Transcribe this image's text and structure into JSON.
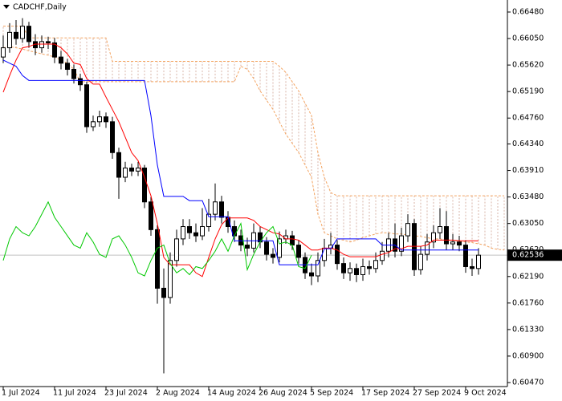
{
  "chart_data": {
    "type": "candlestick",
    "title": "CADCHF,Daily",
    "categories": [
      "1 Jul 2024",
      null,
      null,
      null,
      null,
      null,
      null,
      null,
      "11 Jul 2024",
      null,
      null,
      null,
      null,
      null,
      null,
      null,
      "23 Jul 2024",
      null,
      null,
      null,
      null,
      null,
      null,
      null,
      "2 Aug 2024",
      null,
      null,
      null,
      null,
      null,
      null,
      null,
      "14 Aug 2024",
      null,
      null,
      null,
      null,
      null,
      null,
      null,
      "26 Aug 2024",
      null,
      null,
      null,
      null,
      null,
      null,
      null,
      "5 Sep 2024",
      null,
      null,
      null,
      null,
      null,
      null,
      null,
      "17 Sep 2024",
      null,
      null,
      null,
      null,
      null,
      null,
      null,
      "27 Sep 2024",
      null,
      null,
      null,
      null,
      null,
      null,
      null,
      "9 Oct 2024",
      null,
      null,
      null,
      null,
      null,
      null
    ],
    "open": [
      0.6575,
      0.659,
      0.6615,
      0.6605,
      0.6625,
      0.66,
      0.659,
      0.66,
      0.6598,
      0.6575,
      0.6565,
      0.6555,
      0.654,
      0.653,
      0.6462,
      0.647,
      0.6478,
      0.647,
      0.642,
      0.638,
      0.6395,
      0.639,
      0.6395,
      0.634,
      0.6295,
      0.62,
      0.6185,
      0.6245,
      0.628,
      0.63,
      0.629,
      0.6285,
      0.63,
      0.632,
      0.634,
      0.6315,
      0.63,
      0.6285,
      0.627,
      0.6265,
      0.629,
      0.6275,
      0.6255,
      0.625,
      0.628,
      0.6285,
      0.627,
      0.625,
      0.6225,
      0.622,
      0.6245,
      0.6265,
      0.627,
      0.624,
      0.6225,
      0.6232,
      0.6222,
      0.6235,
      0.6232,
      0.6245,
      0.626,
      0.628,
      0.626,
      0.6285,
      0.6305,
      0.623,
      0.6255,
      0.6275,
      0.629,
      0.63,
      0.6272,
      0.6275,
      0.627,
      0.6235,
      0.6232,
      null,
      null,
      null,
      null
    ],
    "high": [
      0.661,
      0.663,
      0.6635,
      0.6638,
      0.6632,
      0.6612,
      0.661,
      0.6608,
      0.6606,
      0.6585,
      0.6572,
      0.6563,
      0.6548,
      0.6535,
      0.648,
      0.6488,
      0.6485,
      0.6478,
      0.6428,
      0.6405,
      0.6402,
      0.6405,
      0.64,
      0.6348,
      0.6302,
      0.6232,
      0.6258,
      0.6295,
      0.6312,
      0.6312,
      0.6305,
      0.633,
      0.6345,
      0.637,
      0.635,
      0.6325,
      0.631,
      0.6295,
      0.6282,
      0.6305,
      0.63,
      0.6283,
      0.6265,
      0.6292,
      0.6295,
      0.6293,
      0.6278,
      0.6258,
      0.624,
      0.6258,
      0.628,
      0.629,
      0.6278,
      0.625,
      0.6242,
      0.624,
      0.6248,
      0.6245,
      0.6258,
      0.6275,
      0.629,
      0.6305,
      0.6298,
      0.632,
      0.6312,
      0.6268,
      0.6288,
      0.6302,
      0.633,
      0.6325,
      0.6288,
      0.6285,
      0.6278,
      0.6248,
      0.6265,
      null,
      null,
      null,
      null
    ],
    "low": [
      0.6565,
      0.6582,
      0.6595,
      0.6598,
      0.659,
      0.6578,
      0.6582,
      0.6588,
      0.6565,
      0.6555,
      0.6545,
      0.6532,
      0.652,
      0.6452,
      0.6455,
      0.6462,
      0.646,
      0.641,
      0.6345,
      0.6372,
      0.6382,
      0.6382,
      0.633,
      0.6285,
      0.6175,
      0.6062,
      0.6175,
      0.6235,
      0.627,
      0.628,
      0.6275,
      0.6278,
      0.6292,
      0.631,
      0.6305,
      0.629,
      0.6275,
      0.626,
      0.6252,
      0.6258,
      0.6265,
      0.6245,
      0.624,
      0.6242,
      0.6272,
      0.6262,
      0.624,
      0.6215,
      0.6205,
      0.621,
      0.6235,
      0.6255,
      0.623,
      0.6215,
      0.6212,
      0.621,
      0.6212,
      0.6222,
      0.6225,
      0.6238,
      0.625,
      0.625,
      0.6252,
      0.6275,
      0.622,
      0.6222,
      0.6245,
      0.6265,
      0.628,
      0.6262,
      0.6262,
      0.626,
      0.6225,
      0.622,
      0.6222,
      null,
      null,
      null,
      null
    ],
    "close": [
      0.659,
      0.6615,
      0.6605,
      0.6625,
      0.66,
      0.659,
      0.66,
      0.6598,
      0.6575,
      0.6565,
      0.6555,
      0.654,
      0.653,
      0.6462,
      0.647,
      0.6478,
      0.647,
      0.642,
      0.638,
      0.6395,
      0.639,
      0.6395,
      0.634,
      0.6295,
      0.62,
      0.6185,
      0.6245,
      0.628,
      0.63,
      0.629,
      0.6285,
      0.63,
      0.632,
      0.634,
      0.6315,
      0.63,
      0.6285,
      0.627,
      0.6265,
      0.629,
      0.6275,
      0.6255,
      0.625,
      0.628,
      0.6285,
      0.627,
      0.625,
      0.6225,
      0.622,
      0.6245,
      0.6265,
      0.627,
      0.624,
      0.6225,
      0.6232,
      0.6222,
      0.6235,
      0.6232,
      0.6245,
      0.626,
      0.628,
      0.626,
      0.6285,
      0.6305,
      0.623,
      0.6255,
      0.6275,
      0.629,
      0.63,
      0.6272,
      0.6275,
      0.627,
      0.6235,
      0.6232,
      0.62536,
      null,
      null,
      null,
      null
    ],
    "up_color": "#ffffff",
    "down_color": "#000000",
    "edge_color": "#000000",
    "lines": [
      {
        "color": "#ff0000",
        "values": [
          0.6518,
          0.6545,
          0.657,
          0.659,
          0.6592,
          0.6596,
          0.6596,
          0.6596,
          0.6596,
          0.659,
          0.658,
          0.6565,
          0.6563,
          0.654,
          0.6531,
          0.6531,
          0.651,
          0.649,
          0.647,
          0.6445,
          0.642,
          0.6407,
          0.638,
          0.635,
          0.6305,
          0.625,
          0.6238,
          0.6238,
          0.6238,
          0.6238,
          0.6225,
          0.6219,
          0.625,
          0.628,
          0.6303,
          0.6314,
          0.6314,
          0.6314,
          0.6314,
          0.631,
          0.63,
          0.6295,
          0.629,
          0.6288,
          0.628,
          0.628,
          0.6278,
          0.627,
          0.6262,
          0.6262,
          0.6265,
          0.6265,
          0.6262,
          0.6255,
          0.6251,
          0.6251,
          0.6251,
          0.6251,
          0.6251,
          0.6255,
          0.6258,
          0.6264,
          0.6264,
          0.6268,
          0.6268,
          0.6268,
          0.627,
          0.6278,
          0.6278,
          0.6278,
          0.6278,
          0.6277,
          0.6277,
          0.6277,
          0.6277,
          null,
          null,
          null,
          null
        ]
      },
      {
        "color": "#0000ff",
        "values": [
          0.657,
          0.6565,
          0.656,
          0.6545,
          0.6537,
          0.6537,
          0.6537,
          0.6537,
          0.6537,
          0.6537,
          0.6537,
          0.6537,
          0.6537,
          0.6537,
          0.6537,
          0.6537,
          0.6537,
          0.6537,
          0.6537,
          0.6537,
          0.6537,
          0.6537,
          0.6537,
          0.648,
          0.64,
          0.6349,
          0.6349,
          0.6349,
          0.6349,
          0.6342,
          0.6342,
          0.6342,
          0.6316,
          0.6316,
          0.6316,
          0.6316,
          0.6277,
          0.6277,
          0.6277,
          0.6277,
          0.6277,
          0.6277,
          0.6277,
          0.6238,
          0.6238,
          0.6238,
          0.6238,
          0.6238,
          0.6238,
          0.6238,
          0.6264,
          0.6264,
          0.628,
          0.628,
          0.628,
          0.628,
          0.628,
          0.628,
          0.628,
          0.627,
          0.627,
          0.627,
          0.6262,
          0.6262,
          0.6262,
          0.6262,
          0.6262,
          0.6262,
          0.6262,
          0.6262,
          0.6262,
          0.6262,
          0.6262,
          0.6262,
          0.6262,
          null,
          null,
          null,
          null
        ]
      },
      {
        "color": "#00c800",
        "values": [
          0.6245,
          0.628,
          0.63,
          0.629,
          0.6285,
          0.63,
          0.632,
          0.634,
          0.6315,
          0.63,
          0.6285,
          0.627,
          0.6265,
          0.629,
          0.6275,
          0.6255,
          0.625,
          0.628,
          0.6285,
          0.627,
          0.625,
          0.6225,
          0.622,
          0.6245,
          0.6265,
          0.627,
          0.624,
          0.6225,
          0.6232,
          0.6222,
          0.6235,
          0.6232,
          0.6245,
          0.626,
          0.628,
          0.626,
          0.6285,
          0.6305,
          0.623,
          0.6255,
          0.6275,
          0.629,
          0.63,
          0.6272,
          0.6275,
          0.627,
          0.6235,
          0.6232,
          0.62536,
          null,
          null,
          null,
          null,
          null,
          null,
          null,
          null,
          null,
          null,
          null,
          null,
          null,
          null,
          null,
          null,
          null,
          null,
          null,
          null,
          null,
          null,
          null,
          null,
          null,
          null,
          null,
          null,
          null,
          null
        ]
      }
    ],
    "cloud": {
      "line_color": "#f4a460",
      "hatch_color": "#d8b4a8",
      "span_a": [
        0.659,
        0.6592,
        0.659,
        0.6588,
        0.6585,
        0.6583,
        0.658,
        0.6578,
        0.6575,
        0.657,
        0.6565,
        0.6555,
        0.6535,
        0.6535,
        0.6535,
        0.6535,
        0.6535,
        0.6535,
        0.6535,
        0.6535,
        0.6535,
        0.6535,
        0.6535,
        0.6535,
        0.6535,
        0.6535,
        0.6535,
        0.6535,
        0.6535,
        0.6535,
        0.6535,
        0.6535,
        0.6535,
        0.6535,
        0.6535,
        0.6535,
        0.6535,
        0.656,
        0.6555,
        0.654,
        0.652,
        0.6505,
        0.649,
        0.647,
        0.645,
        0.6435,
        0.642,
        0.64,
        0.638,
        0.632,
        0.629,
        0.6285,
        0.628,
        0.6278,
        0.6275,
        0.6278,
        0.6282,
        0.6285,
        0.6288,
        0.629,
        0.629,
        0.6288,
        0.6288,
        0.6286,
        0.6285,
        0.6284,
        0.6282,
        0.628,
        0.628,
        0.6278,
        0.6278,
        0.6276,
        0.6275,
        0.6274,
        0.6272,
        0.627,
        0.6265,
        0.6263,
        0.6262
      ],
      "span_b": [
        0.6625,
        0.6625,
        0.6625,
        0.6625,
        0.6606,
        0.6606,
        0.6606,
        0.6606,
        0.6606,
        0.6606,
        0.6606,
        0.6606,
        0.6606,
        0.6606,
        0.6606,
        0.6606,
        0.6606,
        0.6568,
        0.6568,
        0.6568,
        0.6568,
        0.6568,
        0.6568,
        0.6568,
        0.6568,
        0.6568,
        0.6568,
        0.6568,
        0.6568,
        0.6568,
        0.6568,
        0.6568,
        0.6568,
        0.6568,
        0.6568,
        0.6568,
        0.6568,
        0.6568,
        0.6568,
        0.6568,
        0.6568,
        0.6568,
        0.6568,
        0.656,
        0.655,
        0.6535,
        0.652,
        0.65,
        0.648,
        0.642,
        0.638,
        0.6355,
        0.635,
        0.635,
        0.635,
        0.635,
        0.635,
        0.635,
        0.635,
        0.635,
        0.635,
        0.635,
        0.635,
        0.635,
        0.635,
        0.635,
        0.635,
        0.635,
        0.635,
        0.635,
        0.635,
        0.635,
        0.635,
        0.635,
        0.635,
        0.635,
        0.635,
        0.635,
        0.635
      ]
    },
    "current_price": 0.62536,
    "ylim": [
      0.60405,
      0.66649
    ],
    "yticks": [
      {
        "value": 0.6648,
        "label": "0.66480"
      },
      {
        "value": 0.6605,
        "label": "0.66050"
      },
      {
        "value": 0.6562,
        "label": "0.65620"
      },
      {
        "value": 0.6519,
        "label": "0.65190"
      },
      {
        "value": 0.6476,
        "label": "0.64760"
      },
      {
        "value": 0.6434,
        "label": "0.64340"
      },
      {
        "value": 0.6391,
        "label": "0.63910"
      },
      {
        "value": 0.6348,
        "label": "0.63480"
      },
      {
        "value": 0.6305,
        "label": "0.63050"
      },
      {
        "value": 0.6262,
        "label": "0.62620"
      },
      {
        "value": 0.6219,
        "label": "0.62190"
      },
      {
        "value": 0.6176,
        "label": "0.61760"
      },
      {
        "value": 0.6133,
        "label": "0.61330"
      },
      {
        "value": 0.609,
        "label": "0.60900"
      },
      {
        "value": 0.6047,
        "label": "0.60470"
      }
    ]
  }
}
